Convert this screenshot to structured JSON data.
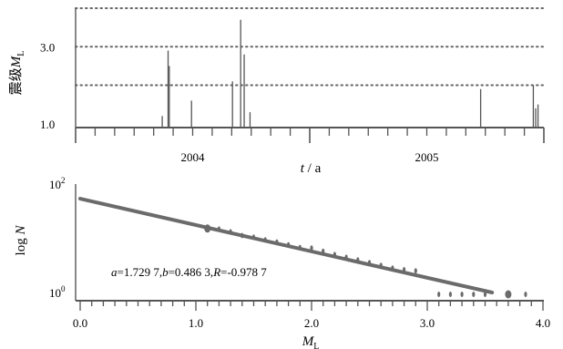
{
  "chart_data": [
    {
      "type": "bar",
      "panel": "top",
      "ylabel_main": "震级",
      "ylabel_symbol": "M",
      "ylabel_sub": "L",
      "xlabel_symbol": "t",
      "xlabel_sep": " / ",
      "xlabel_unit": "a",
      "yticks": [
        "1.0",
        "3.0"
      ],
      "ytick_values": [
        1.0,
        3.0
      ],
      "ylim": [
        0.9,
        4.0
      ],
      "xlim": [
        2003.0,
        2005.0
      ],
      "year_labels": [
        {
          "label": "2004",
          "x": 2003.5
        },
        {
          "label": "2005",
          "x": 2004.5
        }
      ],
      "year_boundaries": [
        2003.0,
        2004.0,
        2005.0
      ],
      "gridlines_y": [
        2.0,
        3.0,
        4.0
      ],
      "grid_style": "dotted",
      "events": [
        {
          "t": 2003.37,
          "m": 1.2
        },
        {
          "t": 2003.395,
          "m": 2.9
        },
        {
          "t": 2003.4,
          "m": 2.5
        },
        {
          "t": 2003.495,
          "m": 1.6
        },
        {
          "t": 2003.67,
          "m": 2.1
        },
        {
          "t": 2003.705,
          "m": 3.7
        },
        {
          "t": 2003.72,
          "m": 2.8
        },
        {
          "t": 2003.745,
          "m": 1.3
        },
        {
          "t": 2004.73,
          "m": 1.9
        },
        {
          "t": 2004.955,
          "m": 2.0
        },
        {
          "t": 2004.965,
          "m": 1.4
        },
        {
          "t": 2004.975,
          "m": 1.5
        }
      ]
    },
    {
      "type": "scatter",
      "panel": "bottom",
      "xlabel_symbol": "M",
      "xlabel_sub": "L",
      "ylabel_prefix": "log ",
      "ylabel_symbol": "N",
      "xticks": [
        "0.0",
        "1.0",
        "2.0",
        "3.0",
        "4.0"
      ],
      "xtick_values": [
        0.0,
        1.0,
        2.0,
        3.0,
        4.0
      ],
      "xlim": [
        0.0,
        4.0
      ],
      "ylim": [
        0,
        2
      ],
      "ytick_base": "10",
      "yticks_exp": [
        "2",
        "0"
      ],
      "ytick_values": [
        2,
        0
      ],
      "fit_line": {
        "x": [
          0.0,
          3.56
        ],
        "y": [
          1.73,
          0.0
        ]
      },
      "annotation": {
        "a_symbol": "a",
        "a_value": "=1.729 7,",
        "b_symbol": "b",
        "b_value": "=0.486 3,",
        "r_symbol": "R",
        "r_value": "=-0.978 7"
      },
      "points": [
        {
          "x": 1.1,
          "y": 1.18
        },
        {
          "x": 1.2,
          "y": 1.17
        },
        {
          "x": 1.3,
          "y": 1.12
        },
        {
          "x": 1.4,
          "y": 1.05
        },
        {
          "x": 1.5,
          "y": 1.02
        },
        {
          "x": 1.6,
          "y": 0.97
        },
        {
          "x": 1.7,
          "y": 0.93
        },
        {
          "x": 1.8,
          "y": 0.88
        },
        {
          "x": 1.9,
          "y": 0.83
        },
        {
          "x": 2.0,
          "y": 0.82
        },
        {
          "x": 2.1,
          "y": 0.76
        },
        {
          "x": 2.2,
          "y": 0.7
        },
        {
          "x": 2.3,
          "y": 0.65
        },
        {
          "x": 2.4,
          "y": 0.6
        },
        {
          "x": 2.5,
          "y": 0.55
        },
        {
          "x": 2.6,
          "y": 0.5
        },
        {
          "x": 2.7,
          "y": 0.45
        },
        {
          "x": 2.8,
          "y": 0.42
        },
        {
          "x": 2.9,
          "y": 0.4
        },
        {
          "x": 3.1,
          "y": 0.0
        },
        {
          "x": 3.2,
          "y": 0.0
        },
        {
          "x": 3.3,
          "y": 0.0
        },
        {
          "x": 3.4,
          "y": 0.0
        },
        {
          "x": 3.5,
          "y": 0.0
        },
        {
          "x": 3.7,
          "y": 0.0
        },
        {
          "x": 3.85,
          "y": 0.0
        }
      ]
    }
  ]
}
